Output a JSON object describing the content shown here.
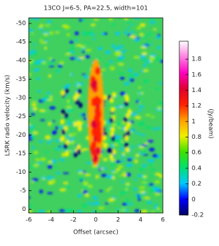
{
  "chart_data": {
    "type": "image",
    "title": "13CO J=6-5, PA=22.5, width=101",
    "x_label": "Offset (arcsec)",
    "y_label": "LSRK radio velocity (km/s)",
    "xlim": [
      -6,
      6
    ],
    "xticks": [
      -6,
      -4,
      -2,
      0,
      2,
      4,
      6
    ],
    "ylim": [
      1,
      -51.5
    ],
    "yticks": [
      0,
      -5,
      -10,
      -15,
      -20,
      -25,
      -30,
      -35,
      -40,
      -45,
      -50
    ],
    "colorbar": {
      "label": "(Jy/beam)",
      "clim": [
        -0.2,
        2.03
      ],
      "ticks": [
        -0.2,
        0,
        0.2,
        0.4,
        0.6,
        0.8,
        1,
        1.2,
        1.4,
        1.6,
        1.8
      ],
      "colormap": [
        "#000060",
        "#0000ff",
        "#00c8ff",
        "#00e070",
        "#40e000",
        "#f0f000",
        "#ffa000",
        "#ff2000",
        "#e00030",
        "#ff00c0",
        "#ff80e0",
        "#ffffff"
      ]
    }
  }
}
